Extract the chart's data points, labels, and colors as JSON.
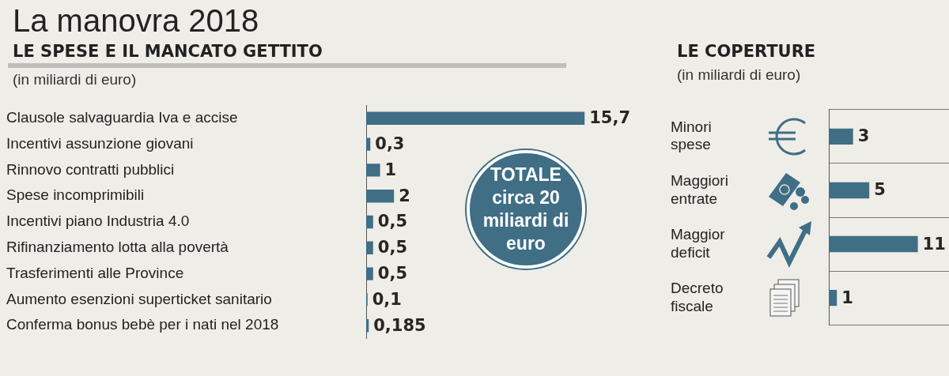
{
  "chart_data": [
    {
      "type": "bar",
      "title": "La manovra 2018",
      "subtitle": "LE SPESE E IL MANCATO GETTITO",
      "orientation": "horizontal",
      "categories": [
        "Clausole salvaguardia Iva e accise",
        "Incentivi assunzione giovani",
        "Rinnovo contratti pubblici",
        "Spese incomprimibili",
        "Incentivi piano Industria 4.0",
        "Rifinanziamento lotta alla povertà",
        "Trasferimenti alle Province",
        "Aumento esenzioni superticket sanitario",
        "Conferma bonus bebè per i nati nel 2018"
      ],
      "values": [
        15.7,
        0.3,
        1,
        2,
        0.5,
        0.5,
        0.5,
        0.1,
        0.185
      ],
      "value_labels": [
        "15,7",
        "0,3",
        "1",
        "2",
        "0,5",
        "0,5",
        "0,5",
        "0,1",
        "0,185"
      ],
      "color": "#3f6e85",
      "tick_labels": "y",
      "annotations": [
        "(in miliardi di euro)",
        "TOTALE circa 20 miliardi di euro"
      ]
    },
    {
      "type": "bar",
      "title": "LE COPERTURE",
      "orientation": "horizontal",
      "categories": [
        "Minori spese",
        "Maggiori entrate",
        "Maggior deficit",
        "Decreto fiscale"
      ],
      "values": [
        3,
        5,
        11,
        1
      ],
      "color": "#3f6e85",
      "data_labels": true,
      "tick_labels": "y",
      "grid": "y",
      "annotations": [
        "(in miliardi di euro)"
      ]
    }
  ]
}
